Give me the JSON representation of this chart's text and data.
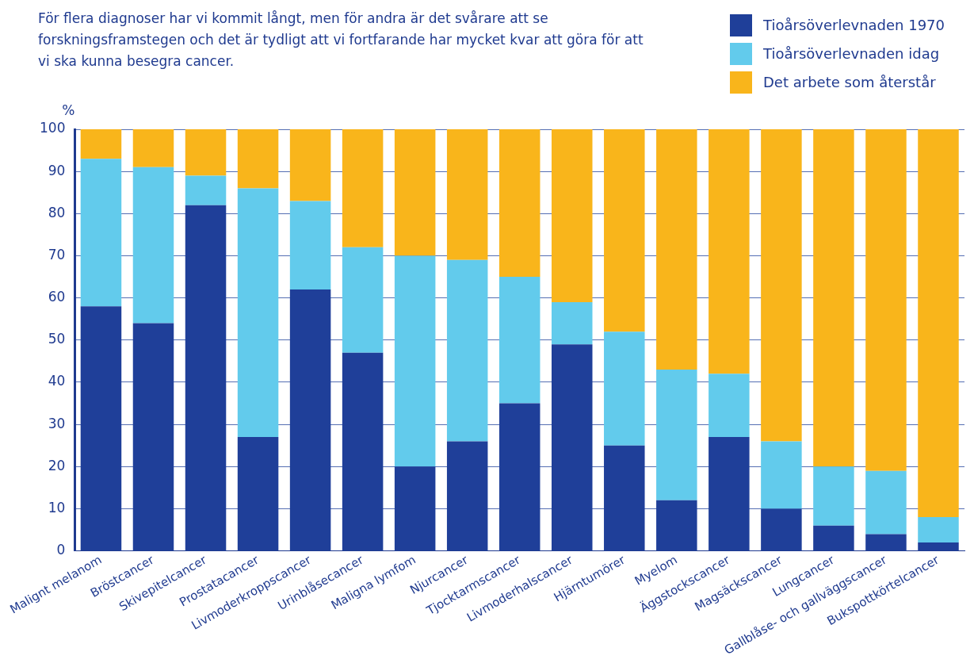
{
  "chart_data": {
    "type": "bar",
    "stacked": true,
    "title": "För flera diagnoser har vi kommit långt, men för andra är det svårare att se forskningsframstegen och det är tydligt att vi fortfarande har mycket kvar att göra för att vi ska kunna besegra cancer.",
    "ylabel": "%",
    "categories": [
      "Malignt melanom",
      "Bröstcancer",
      "Skivepitelcancer",
      "Prostatacancer",
      "Livmoderkroppscancer",
      "Urinblåsecancer",
      "Maligna lymfom",
      "Njurcancer",
      "Tjocktarmscancer",
      "Livmoderhalscancer",
      "Hjärntumörer",
      "Myelom",
      "Äggstockscancer",
      "Magsäckscancer",
      "Lungcancer",
      "Gallblåse- och gallväggscancer",
      "Bukspottkörtelcancer"
    ],
    "series": [
      {
        "name": "Tioårsöverlevnaden 1970",
        "color": "#1f3f99",
        "values": [
          58,
          54,
          82,
          27,
          62,
          47,
          20,
          26,
          35,
          49,
          25,
          12,
          27,
          10,
          6,
          4,
          2
        ]
      },
      {
        "name": "Tioårsöverlevnaden idag",
        "color": "#62cbec",
        "values": [
          35,
          37,
          7,
          59,
          21,
          25,
          50,
          43,
          30,
          10,
          27,
          31,
          15,
          16,
          14,
          15,
          6
        ]
      },
      {
        "name": "Det arbete som återstår",
        "color": "#f9b51b",
        "values": [
          7,
          9,
          11,
          14,
          17,
          28,
          30,
          31,
          35,
          41,
          48,
          57,
          58,
          74,
          80,
          81,
          92
        ]
      }
    ],
    "ylim": [
      0,
      100
    ],
    "yticks": [
      0,
      10,
      20,
      30,
      40,
      50,
      60,
      70,
      80,
      90,
      100
    ],
    "grid": "y",
    "legend": "top right"
  }
}
